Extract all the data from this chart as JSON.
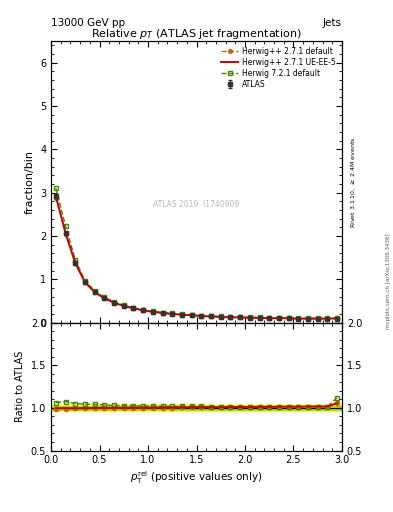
{
  "title": "Relative $p_T$ (ATLAS jet fragmentation)",
  "header_left": "13000 GeV pp",
  "header_right": "Jets",
  "ylabel_main": "fraction/bin",
  "ylabel_ratio": "Ratio to ATLAS",
  "right_label_top": "Rivet 3.1.10, >= 2.4M events",
  "right_label_bot": "mcplots.cern.ch [arXiv:1306.3436]",
  "watermark": "ATLAS 2019  I1740909",
  "main_xlim": [
    0,
    3
  ],
  "main_ylim": [
    0,
    6.5
  ],
  "ratio_ylim": [
    0.5,
    2.0
  ],
  "x_data": [
    0.05,
    0.15,
    0.25,
    0.35,
    0.45,
    0.55,
    0.65,
    0.75,
    0.85,
    0.95,
    1.05,
    1.15,
    1.25,
    1.35,
    1.45,
    1.55,
    1.65,
    1.75,
    1.85,
    1.95,
    2.05,
    2.15,
    2.25,
    2.35,
    2.45,
    2.55,
    2.65,
    2.75,
    2.85,
    2.95
  ],
  "atlas_y": [
    2.92,
    2.07,
    1.38,
    0.93,
    0.7,
    0.56,
    0.46,
    0.38,
    0.33,
    0.28,
    0.25,
    0.22,
    0.2,
    0.18,
    0.17,
    0.15,
    0.14,
    0.13,
    0.12,
    0.12,
    0.11,
    0.11,
    0.1,
    0.1,
    0.1,
    0.09,
    0.09,
    0.09,
    0.09,
    0.09
  ],
  "atlas_yerr": [
    0.05,
    0.03,
    0.02,
    0.015,
    0.01,
    0.008,
    0.007,
    0.006,
    0.005,
    0.005,
    0.004,
    0.004,
    0.003,
    0.003,
    0.003,
    0.003,
    0.003,
    0.003,
    0.003,
    0.003,
    0.003,
    0.003,
    0.003,
    0.003,
    0.003,
    0.003,
    0.003,
    0.003,
    0.003,
    0.003
  ],
  "hw271_def_y": [
    2.88,
    2.05,
    1.37,
    0.93,
    0.7,
    0.56,
    0.46,
    0.38,
    0.33,
    0.28,
    0.25,
    0.22,
    0.2,
    0.18,
    0.17,
    0.15,
    0.14,
    0.13,
    0.12,
    0.12,
    0.11,
    0.11,
    0.1,
    0.1,
    0.1,
    0.09,
    0.09,
    0.09,
    0.09,
    0.095
  ],
  "hw271_ueee5_y": [
    2.91,
    2.06,
    1.37,
    0.93,
    0.7,
    0.56,
    0.46,
    0.38,
    0.33,
    0.28,
    0.25,
    0.22,
    0.2,
    0.18,
    0.17,
    0.15,
    0.14,
    0.13,
    0.12,
    0.12,
    0.11,
    0.11,
    0.1,
    0.1,
    0.1,
    0.09,
    0.09,
    0.09,
    0.09,
    0.095
  ],
  "hw721_def_y": [
    3.1,
    2.22,
    1.45,
    0.97,
    0.73,
    0.58,
    0.48,
    0.4,
    0.34,
    0.29,
    0.26,
    0.23,
    0.21,
    0.19,
    0.17,
    0.16,
    0.15,
    0.14,
    0.13,
    0.13,
    0.12,
    0.12,
    0.11,
    0.11,
    0.11,
    0.1,
    0.1,
    0.1,
    0.1,
    0.105
  ],
  "hw271_def_ratio": [
    0.987,
    0.992,
    0.993,
    0.997,
    0.998,
    0.999,
    1.0,
    1.001,
    1.002,
    1.002,
    1.003,
    1.003,
    1.003,
    1.005,
    1.006,
    1.007,
    1.007,
    1.008,
    1.008,
    1.01,
    1.01,
    1.011,
    1.011,
    1.012,
    1.012,
    1.012,
    1.013,
    1.013,
    1.013,
    1.055
  ],
  "hw271_ueee5_ratio": [
    0.997,
    0.997,
    0.995,
    0.997,
    0.999,
    1.0,
    1.001,
    1.002,
    1.002,
    1.003,
    1.003,
    1.004,
    1.005,
    1.006,
    1.007,
    1.008,
    1.008,
    1.009,
    1.01,
    1.011,
    1.012,
    1.012,
    1.013,
    1.014,
    1.015,
    1.015,
    1.016,
    1.017,
    1.017,
    1.055
  ],
  "hw721_def_ratio": [
    1.062,
    1.073,
    1.051,
    1.044,
    1.04,
    1.033,
    1.03,
    1.027,
    1.025,
    1.023,
    1.022,
    1.02,
    1.019,
    1.018,
    1.017,
    1.017,
    1.016,
    1.016,
    1.016,
    1.016,
    1.016,
    1.015,
    1.015,
    1.014,
    1.014,
    1.014,
    1.013,
    1.013,
    1.013,
    1.12
  ],
  "atlas_col": "#333333",
  "hw271_def_col": "#cc6600",
  "hw271_ueee5_col": "#cc0000",
  "hw721_def_col": "#448800"
}
